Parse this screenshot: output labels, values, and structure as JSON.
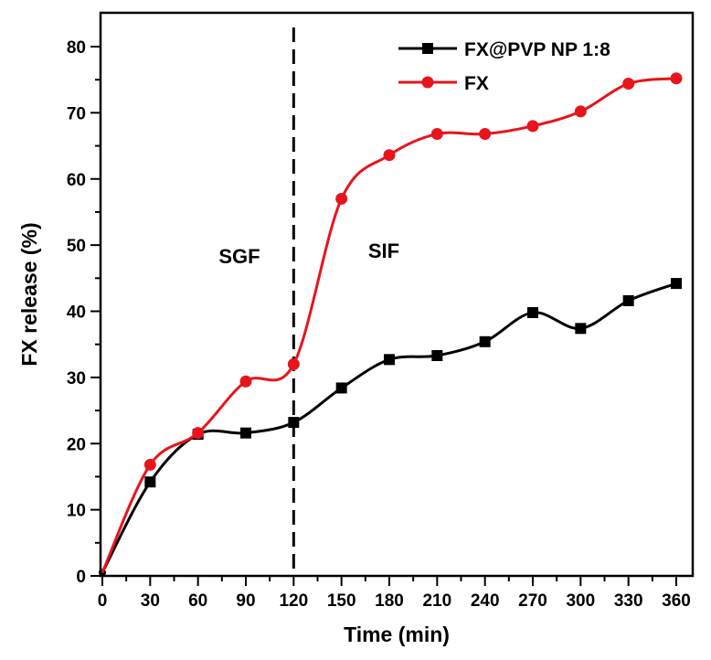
{
  "chart_data": {
    "type": "line",
    "xlabel": "Time (min)",
    "ylabel": "FX release (%)",
    "xlim": [
      0,
      360
    ],
    "ylim": [
      0,
      85
    ],
    "xticks": [
      0,
      30,
      60,
      90,
      120,
      150,
      180,
      210,
      240,
      270,
      300,
      330,
      360
    ],
    "yticks": [
      0,
      10,
      20,
      30,
      40,
      50,
      60,
      70,
      80
    ],
    "series": [
      {
        "name": "FX@PVP NP 1:8",
        "color": "#000000",
        "marker": "square",
        "x": [
          0,
          30,
          60,
          90,
          120,
          150,
          180,
          210,
          240,
          270,
          300,
          330,
          360
        ],
        "values": [
          0.5,
          14.2,
          21.4,
          21.6,
          23.2,
          28.4,
          32.7,
          33.3,
          35.4,
          39.8,
          37.4,
          41.6,
          44.2
        ]
      },
      {
        "name": "FX",
        "color": "#e8141b",
        "marker": "circle",
        "x": [
          0,
          30,
          60,
          90,
          120,
          150,
          180,
          210,
          240,
          270,
          300,
          330,
          360
        ],
        "values": [
          0.5,
          16.8,
          21.6,
          29.4,
          32.0,
          57.0,
          63.6,
          66.8,
          66.8,
          68.0,
          70.2,
          74.4,
          75.2
        ]
      }
    ],
    "annotations": [
      {
        "text": "SGF",
        "x": 90,
        "y": 48
      },
      {
        "text": "SIF",
        "x": 150,
        "y": 49
      }
    ],
    "vline": {
      "x": 120,
      "style": "dashed"
    },
    "legend": "top-right"
  }
}
